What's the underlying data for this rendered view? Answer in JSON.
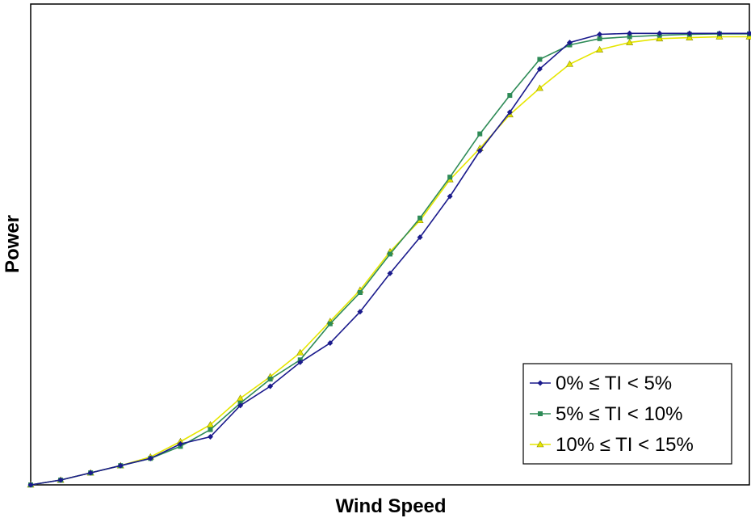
{
  "chart_data": {
    "type": "line",
    "title": "",
    "xlabel": "Wind Speed",
    "ylabel": "Power",
    "xlim": [
      0,
      24
    ],
    "ylim": [
      0,
      100
    ],
    "grid": false,
    "legend_position": "bottom-right",
    "x": [
      0,
      1,
      2,
      3,
      4,
      5,
      6,
      7,
      8,
      9,
      10,
      11,
      12,
      13,
      14,
      15,
      16,
      17,
      18,
      19,
      20,
      21,
      22,
      23,
      24
    ],
    "series": [
      {
        "name": "0% ≤ TI < 5%",
        "color": "#1a1a8c",
        "marker": "diamond",
        "values": [
          0,
          1.0,
          2.5,
          4.0,
          5.5,
          8.5,
          10.0,
          16.5,
          20.5,
          25.5,
          29.5,
          36.0,
          44.0,
          51.5,
          60.0,
          69.5,
          77.5,
          86.5,
          92.0,
          93.7,
          93.9,
          93.9,
          93.9,
          93.9,
          93.9
        ]
      },
      {
        "name": "5% ≤ TI < 10%",
        "color": "#2e8b57",
        "marker": "square",
        "values": [
          0,
          1.0,
          2.5,
          4.0,
          5.5,
          8.0,
          11.5,
          17.0,
          22.0,
          26.0,
          33.5,
          40.0,
          48.0,
          55.5,
          64.0,
          73.0,
          81.0,
          88.5,
          91.5,
          92.8,
          93.2,
          93.5,
          93.7,
          93.8,
          93.8
        ]
      },
      {
        "name": "10% ≤ TI < 15%",
        "color": "#e6e600",
        "marker": "triangle",
        "values": [
          0,
          1.0,
          2.5,
          4.0,
          5.8,
          9.0,
          12.5,
          18.0,
          22.5,
          27.5,
          34.0,
          40.5,
          48.5,
          55.0,
          63.5,
          70.0,
          77.0,
          82.5,
          87.5,
          90.5,
          92.0,
          92.8,
          93.0,
          93.2,
          93.2
        ]
      }
    ]
  }
}
